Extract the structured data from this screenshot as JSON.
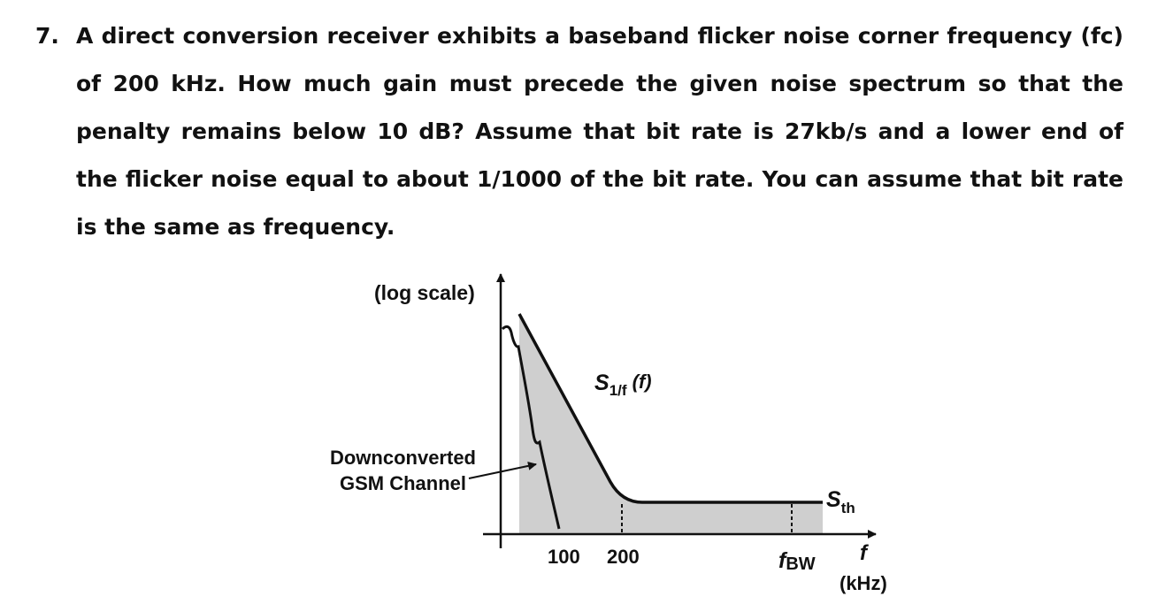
{
  "question": {
    "number": "7.",
    "text": "A direct conversion receiver exhibits a baseband flicker noise corner frequency (fc) of 200 kHz. How much gain must precede the given noise spectrum so that the penalty remains below 10 dB? Assume that bit rate is 27kb/s and a lower end of the flicker noise equal to about 1/1000 of the bit rate. You can assume that bit rate is the same as frequency."
  },
  "figure": {
    "y_axis_label": "(log scale)",
    "curve_label_main": "S",
    "curve_label_sub": "1/f",
    "curve_label_arg": " (f)",
    "channel_label_line1": "Downconverted",
    "channel_label_line2": "GSM Channel",
    "threshold_label_main": "S",
    "threshold_label_sub": "th",
    "tick_100": "100",
    "tick_200": "200",
    "fbw_main": "f",
    "fbw_sub": "BW",
    "x_axis_label": "f",
    "x_axis_unit": "(kHz)",
    "fill_color": "#cfcfcf"
  }
}
